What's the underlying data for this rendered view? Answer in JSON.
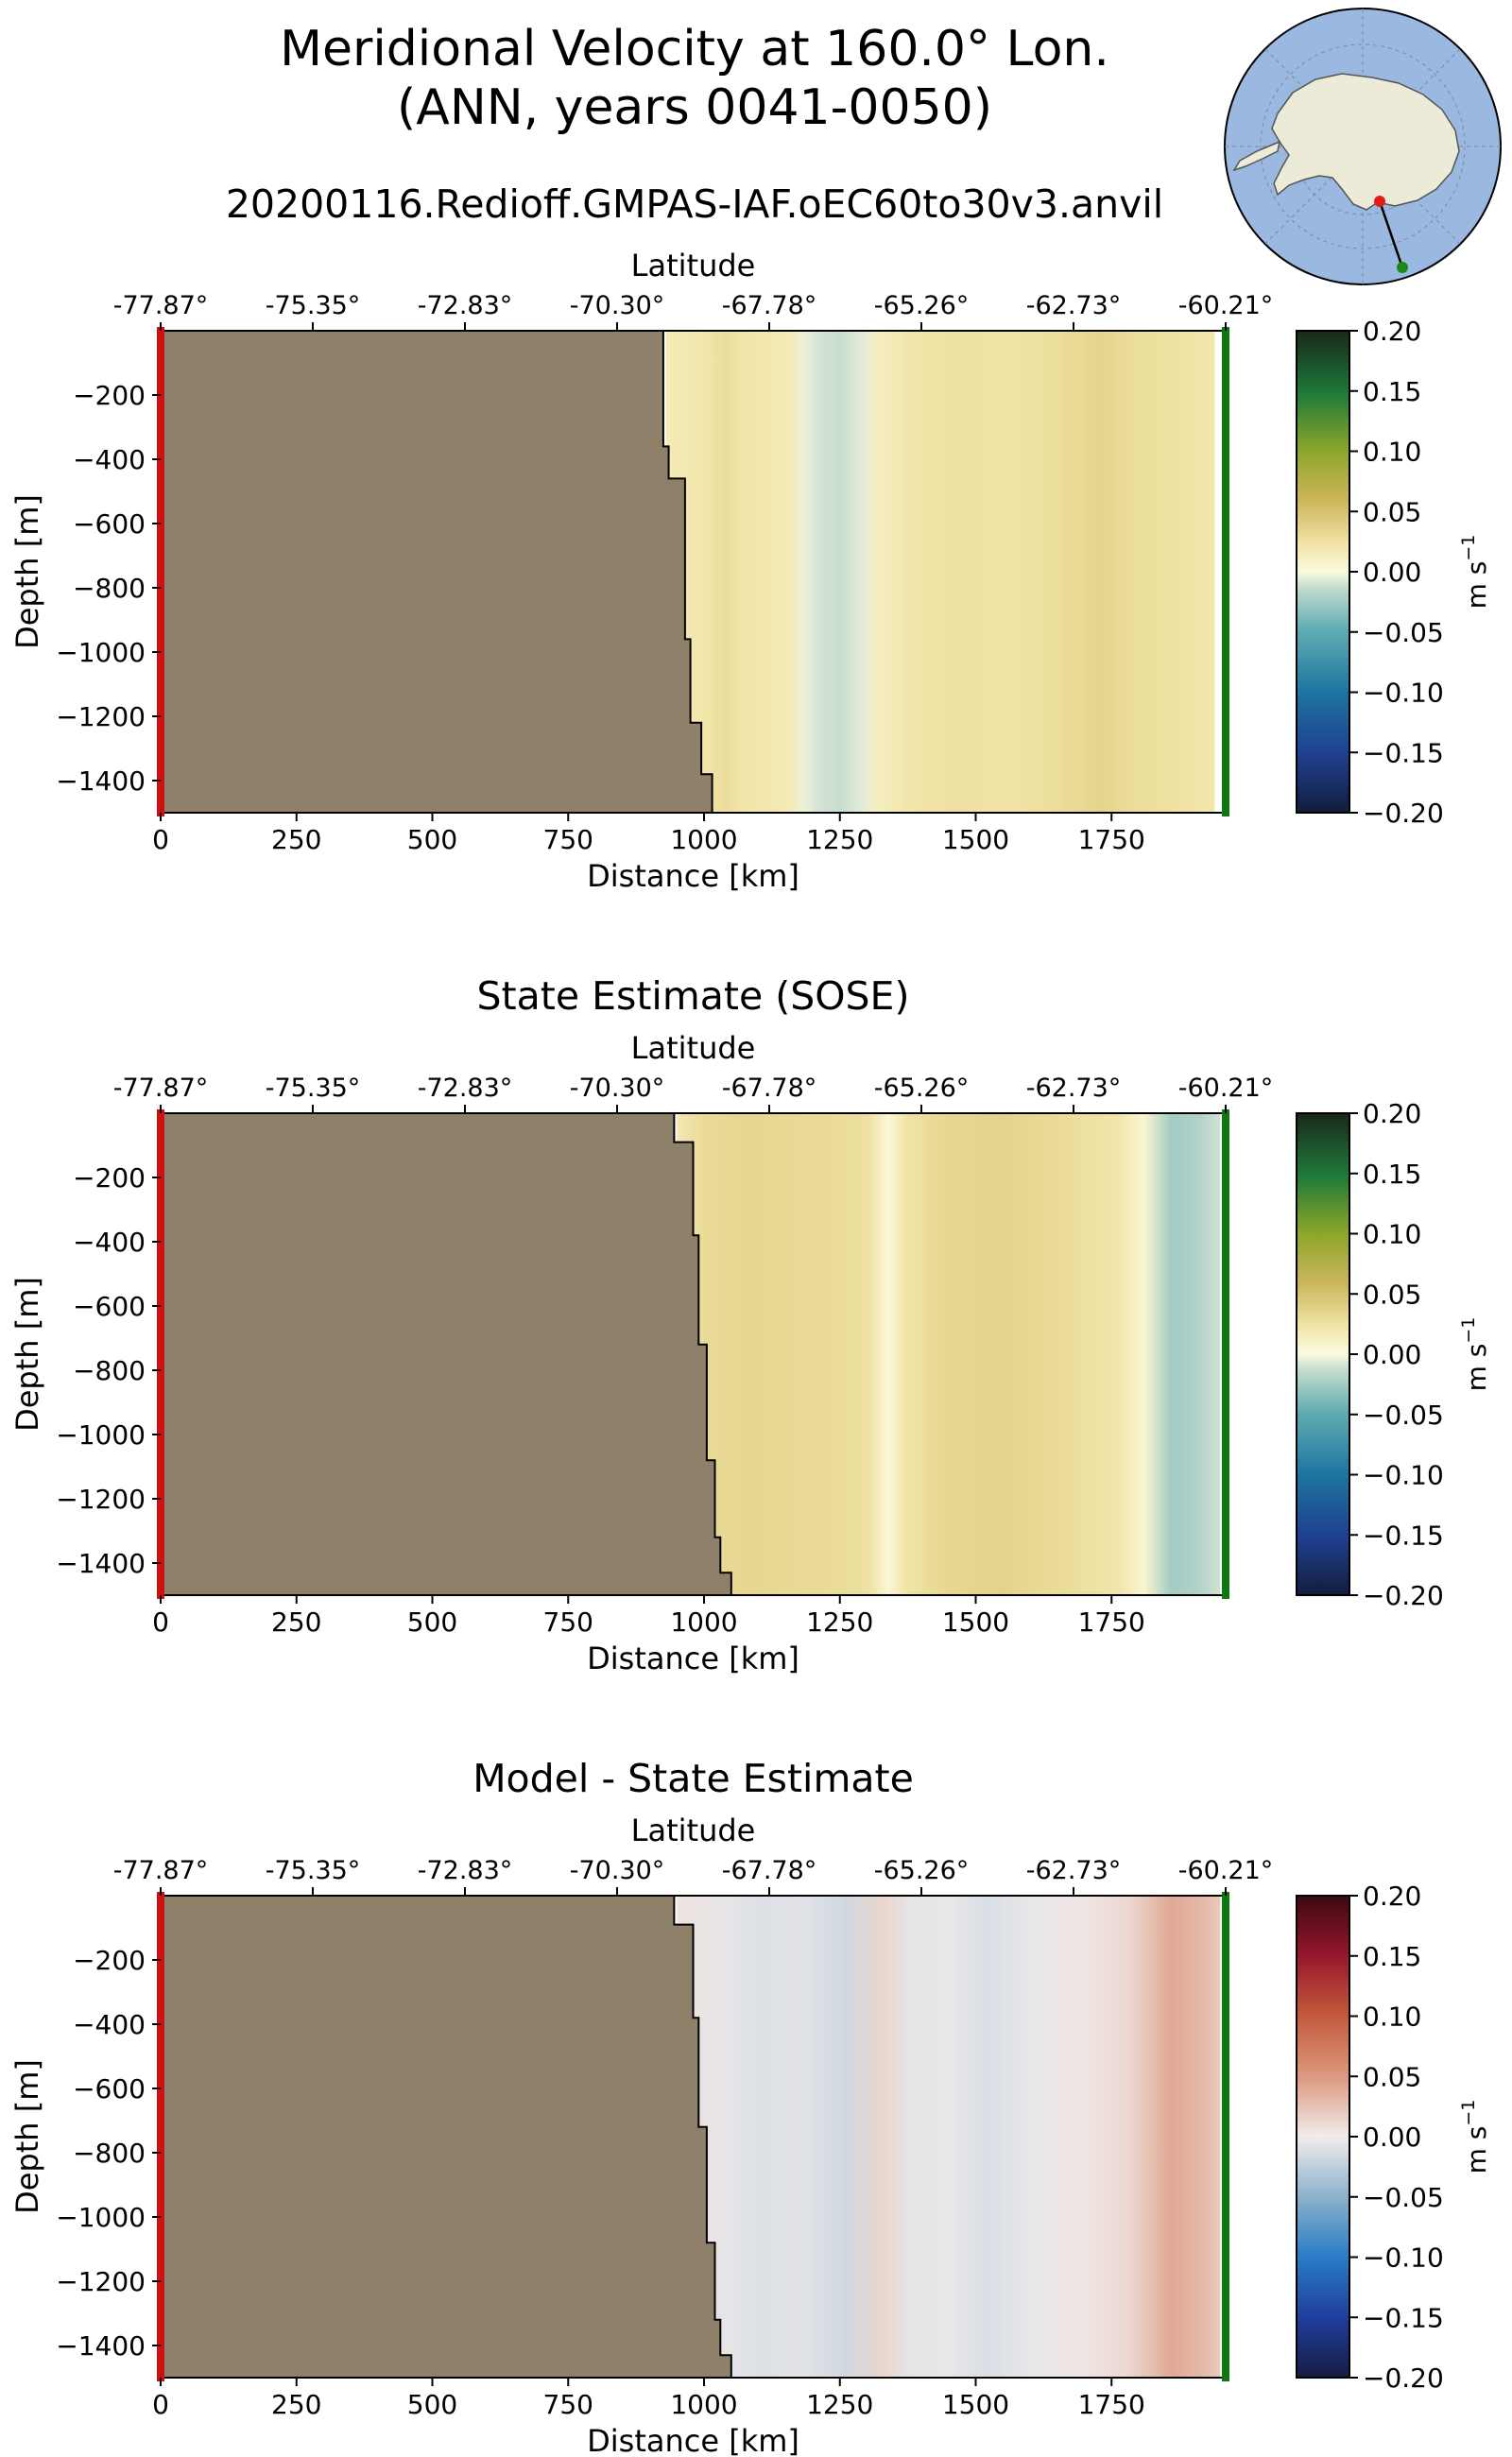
{
  "header": {
    "title_line1": "Meridional Velocity at 160.0° Lon.",
    "title_line2": "(ANN, years 0041-0050)",
    "run_name": "20200116.Redioff.GMPAS-IAF.oEC60to30v3.anvil"
  },
  "inset_map": {
    "region": "Antarctica",
    "start_marker_color": "#e41a1c",
    "end_marker_color": "#1a8a1a",
    "ocean_color": "#9ab8e0",
    "land_color": "#ecebd8"
  },
  "section_colors": {
    "land_fill": "#8f8069",
    "start_edge": "#cc1111",
    "end_edge": "#117711"
  },
  "chart_data": [
    {
      "type": "heatmap",
      "title": "",
      "xlabel": "Distance [km]",
      "ylabel": "Depth [m]",
      "top_axis_label": "Latitude",
      "top_tick_labels": [
        "-77.87°",
        "-75.35°",
        "-72.83°",
        "-70.30°",
        "-67.78°",
        "-65.26°",
        "-62.73°",
        "-60.21°"
      ],
      "x_tick_labels": [
        "0",
        "250",
        "500",
        "750",
        "1000",
        "1250",
        "1500",
        "1750"
      ],
      "y_tick_labels": [
        "−200",
        "−400",
        "−600",
        "−800",
        "−1000",
        "−1200",
        "−1400"
      ],
      "xlim": [
        0,
        1960
      ],
      "ylim": [
        -1500,
        0
      ],
      "colorbar": {
        "colormap": "delta",
        "label": "m s$^{-1}$",
        "range": [
          -0.2,
          0.2
        ],
        "ticks": [
          "0.20",
          "0.15",
          "0.10",
          "0.05",
          "0.00",
          "−0.05",
          "−0.10",
          "−0.15",
          "−0.20"
        ]
      },
      "bathymetry": [
        [
          0,
          0
        ],
        [
          925,
          0
        ],
        [
          925,
          -360
        ],
        [
          935,
          -360
        ],
        [
          935,
          -460
        ],
        [
          965,
          -460
        ],
        [
          965,
          -960
        ],
        [
          975,
          -960
        ],
        [
          975,
          -1220
        ],
        [
          995,
          -1220
        ],
        [
          995,
          -1380
        ],
        [
          1015,
          -1380
        ],
        [
          1015,
          -1500
        ]
      ],
      "velocity_columns": [
        [
          930,
          0.016
        ],
        [
          990,
          0.02
        ],
        [
          1040,
          0.028
        ],
        [
          1075,
          0.022
        ],
        [
          1110,
          0.02
        ],
        [
          1160,
          0.016
        ],
        [
          1185,
          -0.004
        ],
        [
          1215,
          -0.01
        ],
        [
          1250,
          -0.012
        ],
        [
          1290,
          -0.006
        ],
        [
          1320,
          0.012
        ],
        [
          1380,
          0.022
        ],
        [
          1460,
          0.026
        ],
        [
          1560,
          0.024
        ],
        [
          1650,
          0.028
        ],
        [
          1730,
          0.036
        ],
        [
          1800,
          0.028
        ],
        [
          1880,
          0.025
        ],
        [
          1940,
          0.02
        ]
      ]
    },
    {
      "type": "heatmap",
      "title": "State Estimate (SOSE)",
      "xlabel": "Distance [km]",
      "ylabel": "Depth [m]",
      "top_axis_label": "Latitude",
      "top_tick_labels": [
        "-77.87°",
        "-75.35°",
        "-72.83°",
        "-70.30°",
        "-67.78°",
        "-65.26°",
        "-62.73°",
        "-60.21°"
      ],
      "x_tick_labels": [
        "0",
        "250",
        "500",
        "750",
        "1000",
        "1250",
        "1500",
        "1750"
      ],
      "y_tick_labels": [
        "−200",
        "−400",
        "−600",
        "−800",
        "−1000",
        "−1200",
        "−1400"
      ],
      "xlim": [
        0,
        1960
      ],
      "ylim": [
        -1500,
        0
      ],
      "colorbar": {
        "colormap": "delta",
        "label": "m s$^{-1}$",
        "range": [
          -0.2,
          0.2
        ],
        "ticks": [
          "0.20",
          "0.15",
          "0.10",
          "0.05",
          "0.00",
          "−0.05",
          "−0.10",
          "−0.15",
          "−0.20"
        ]
      },
      "bathymetry": [
        [
          0,
          0
        ],
        [
          945,
          0
        ],
        [
          945,
          -90
        ],
        [
          980,
          -90
        ],
        [
          980,
          -380
        ],
        [
          990,
          -380
        ],
        [
          990,
          -720
        ],
        [
          1005,
          -720
        ],
        [
          1005,
          -1080
        ],
        [
          1020,
          -1080
        ],
        [
          1020,
          -1320
        ],
        [
          1030,
          -1320
        ],
        [
          1030,
          -1430
        ],
        [
          1050,
          -1430
        ],
        [
          1050,
          -1500
        ]
      ],
      "velocity_columns": [
        [
          950,
          0.018
        ],
        [
          1000,
          0.03
        ],
        [
          1080,
          0.034
        ],
        [
          1150,
          0.032
        ],
        [
          1230,
          0.03
        ],
        [
          1300,
          0.026
        ],
        [
          1340,
          0.004
        ],
        [
          1375,
          0.024
        ],
        [
          1450,
          0.034
        ],
        [
          1550,
          0.036
        ],
        [
          1650,
          0.03
        ],
        [
          1760,
          0.022
        ],
        [
          1810,
          0.006
        ],
        [
          1860,
          -0.025
        ],
        [
          1910,
          -0.02
        ],
        [
          1950,
          -0.01
        ]
      ]
    },
    {
      "type": "heatmap",
      "title": "Model - State Estimate",
      "xlabel": "Distance [km]",
      "ylabel": "Depth [m]",
      "top_axis_label": "Latitude",
      "top_tick_labels": [
        "-77.87°",
        "-75.35°",
        "-72.83°",
        "-70.30°",
        "-67.78°",
        "-65.26°",
        "-62.73°",
        "-60.21°"
      ],
      "x_tick_labels": [
        "0",
        "250",
        "500",
        "750",
        "1000",
        "1250",
        "1500",
        "1750"
      ],
      "y_tick_labels": [
        "−200",
        "−400",
        "−600",
        "−800",
        "−1000",
        "−1200",
        "−1400"
      ],
      "xlim": [
        0,
        1960
      ],
      "ylim": [
        -1500,
        0
      ],
      "colorbar": {
        "colormap": "balance",
        "label": "m s$^{-1}$",
        "range": [
          -0.2,
          0.2
        ],
        "ticks": [
          "0.20",
          "0.15",
          "0.10",
          "0.05",
          "0.00",
          "−0.05",
          "−0.10",
          "−0.15",
          "−0.20"
        ]
      },
      "bathymetry": [
        [
          0,
          0
        ],
        [
          945,
          0
        ],
        [
          945,
          -90
        ],
        [
          980,
          -90
        ],
        [
          980,
          -380
        ],
        [
          990,
          -380
        ],
        [
          990,
          -720
        ],
        [
          1005,
          -720
        ],
        [
          1005,
          -1080
        ],
        [
          1020,
          -1080
        ],
        [
          1020,
          -1320
        ],
        [
          1030,
          -1320
        ],
        [
          1030,
          -1430
        ],
        [
          1050,
          -1430
        ],
        [
          1050,
          -1500
        ]
      ],
      "velocity_columns": [
        [
          950,
          0.006
        ],
        [
          1050,
          -0.006
        ],
        [
          1100,
          -0.01
        ],
        [
          1180,
          -0.008
        ],
        [
          1260,
          -0.016
        ],
        [
          1330,
          0.014
        ],
        [
          1380,
          -0.006
        ],
        [
          1450,
          -0.004
        ],
        [
          1520,
          -0.012
        ],
        [
          1600,
          -0.004
        ],
        [
          1700,
          0.004
        ],
        [
          1780,
          0.012
        ],
        [
          1860,
          0.04
        ],
        [
          1920,
          0.03
        ],
        [
          1950,
          0.02
        ]
      ]
    }
  ]
}
